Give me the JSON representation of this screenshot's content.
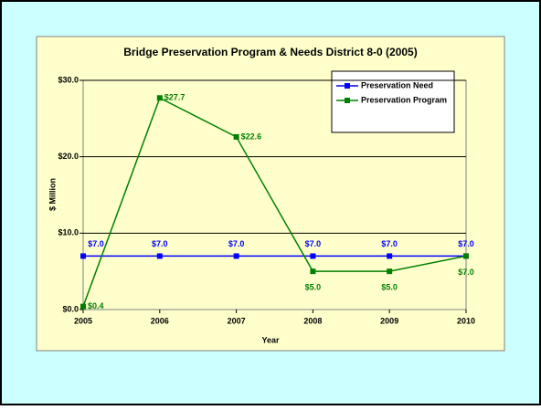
{
  "chart_data": {
    "type": "line",
    "title": "Bridge Preservation Program & Needs District 8-0 (2005)",
    "x_label": "Year",
    "y_label": "$ Million",
    "categories": [
      "2005",
      "2006",
      "2007",
      "2008",
      "2009",
      "2010"
    ],
    "series": [
      {
        "name": "Preservation Need",
        "color": "#0000ff",
        "values": [
          7.0,
          7.0,
          7.0,
          7.0,
          7.0,
          7.0
        ],
        "value_labels": [
          "$7.0",
          "$7.0",
          "$7.0",
          "$7.0",
          "$7.0",
          "$7.0"
        ]
      },
      {
        "name": "Preservation Program",
        "color": "#008000",
        "values": [
          0.4,
          27.7,
          22.6,
          5.0,
          5.0,
          7.0
        ],
        "value_labels": [
          "$0.4",
          "$27.7",
          "$22.6",
          "$5.0",
          "$5.0",
          "$7.0"
        ]
      }
    ],
    "ylim": [
      0,
      30
    ],
    "yticks": [
      {
        "value": 0,
        "label": "$0.0"
      },
      {
        "value": 10,
        "label": "$10.0"
      },
      {
        "value": 20,
        "label": "$20.0"
      },
      {
        "value": 30,
        "label": "$30.0"
      }
    ],
    "grid": true,
    "legend": "upper right"
  }
}
